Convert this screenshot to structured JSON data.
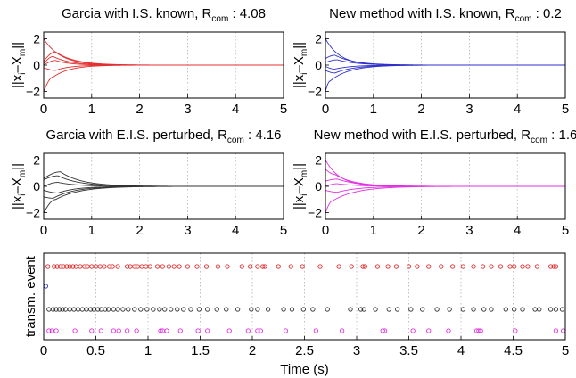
{
  "chart_data": [
    {
      "type": "line",
      "title_main": "Garcia with I.S. known, R",
      "title_sub": "com",
      "title_value": " : 4.08",
      "ylabel_main": "||x",
      "ylabel_sub": "i",
      "ylabel_mid": "–X",
      "ylabel_sub2": "m",
      "ylabel_end": "||",
      "xlim": [
        0,
        5
      ],
      "ylim": [
        -2.5,
        2.5
      ],
      "xticks": [
        "0",
        "1",
        "2",
        "3",
        "4",
        "5"
      ],
      "yticks": [
        "2",
        "0",
        "−2"
      ],
      "grid": "vertical dotted",
      "color": "#e03030",
      "series": [
        {
          "x0": 2.0,
          "peak": 0.0,
          "tp": 0.0,
          "tau": 0.35
        },
        {
          "x0": 0.3,
          "peak": 1.0,
          "tp": 0.25,
          "tau": 0.4
        },
        {
          "x0": 0.1,
          "peak": 0.65,
          "tp": 0.2,
          "tau": 0.35
        },
        {
          "x0": 0.0,
          "peak": 0.35,
          "tp": 0.25,
          "tau": 0.3
        },
        {
          "x0": -0.2,
          "peak": -0.4,
          "tp": 0.25,
          "tau": 0.3
        },
        {
          "x0": -2.0,
          "peak": -0.9,
          "tp": 0.2,
          "tau": 0.35
        }
      ]
    },
    {
      "type": "line",
      "title_main": "New method with I.S. known, R",
      "title_sub": "com",
      "title_value": " : 0.2",
      "ylabel_main": "||x",
      "ylabel_sub": "i",
      "ylabel_mid": "–X",
      "ylabel_sub2": "m",
      "ylabel_end": "||",
      "xlim": [
        0,
        5
      ],
      "ylim": [
        -2.5,
        2.5
      ],
      "xticks": [
        "0",
        "1",
        "2",
        "3",
        "4",
        "5"
      ],
      "yticks": [
        "2",
        "0",
        "−2"
      ],
      "grid": "vertical dotted",
      "color": "#3030c8",
      "series": [
        {
          "x0": 2.0,
          "peak": 0.0,
          "tp": 0.0,
          "tau": 0.3
        },
        {
          "x0": 0.5,
          "peak": 0.75,
          "tp": 0.2,
          "tau": 0.4
        },
        {
          "x0": 0.2,
          "peak": 0.4,
          "tp": 0.25,
          "tau": 0.4
        },
        {
          "x0": -0.1,
          "peak": -0.3,
          "tp": 0.2,
          "tau": 0.35
        },
        {
          "x0": -0.4,
          "peak": -0.6,
          "tp": 0.2,
          "tau": 0.4
        },
        {
          "x0": -2.0,
          "peak": -1.2,
          "tp": 0.1,
          "tau": 0.4
        }
      ]
    },
    {
      "type": "line",
      "title_main": "Garcia with E.I.S. perturbed, R",
      "title_sub": "com",
      "title_value": " : 4.16",
      "ylabel_main": "||x",
      "ylabel_sub": "i",
      "ylabel_mid": "–X",
      "ylabel_sub2": "m",
      "ylabel_end": "||",
      "xlim": [
        0,
        5
      ],
      "ylim": [
        -2.5,
        2.5
      ],
      "xticks": [
        "0",
        "1",
        "2",
        "3",
        "4",
        "5"
      ],
      "yticks": [
        "2",
        "0",
        "−2"
      ],
      "grid": "vertical dotted",
      "color": "#333333",
      "series": [
        {
          "x0": 0.6,
          "peak": 1.1,
          "tp": 0.35,
          "tau": 0.45
        },
        {
          "x0": 0.5,
          "peak": 0.8,
          "tp": 0.3,
          "tau": 0.45
        },
        {
          "x0": 0.0,
          "peak": 0.3,
          "tp": 0.3,
          "tau": 0.4
        },
        {
          "x0": -0.3,
          "peak": -0.5,
          "tp": 0.3,
          "tau": 0.4
        },
        {
          "x0": -0.8,
          "peak": -0.9,
          "tp": 0.2,
          "tau": 0.45
        },
        {
          "x0": -2.0,
          "peak": -1.0,
          "tp": 0.25,
          "tau": 0.5
        }
      ]
    },
    {
      "type": "line",
      "title_main": "New method with E.I.S. perturbed, R",
      "title_sub": "com",
      "title_value": " : 1.6",
      "ylabel_main": "||x",
      "ylabel_sub": "i",
      "ylabel_mid": "–X",
      "ylabel_sub2": "m",
      "ylabel_end": "||",
      "xlim": [
        0,
        5
      ],
      "ylim": [
        -2.5,
        2.5
      ],
      "xticks": [
        "0",
        "1",
        "2",
        "3",
        "4",
        "5"
      ],
      "yticks": [
        "2",
        "0",
        "−2"
      ],
      "grid": "vertical dotted",
      "color": "#e030e0",
      "series": [
        {
          "x0": 2.0,
          "peak": 0.0,
          "tp": 0.0,
          "tau": 0.3
        },
        {
          "x0": 1.3,
          "peak": 0.9,
          "tp": 0.2,
          "tau": 0.4
        },
        {
          "x0": 0.4,
          "peak": 0.55,
          "tp": 0.25,
          "tau": 0.45
        },
        {
          "x0": 0.0,
          "peak": 0.2,
          "tp": 0.25,
          "tau": 0.4
        },
        {
          "x0": -0.3,
          "peak": -0.45,
          "tp": 0.25,
          "tau": 0.45
        },
        {
          "x0": -2.0,
          "peak": -1.1,
          "tp": 0.15,
          "tau": 0.5
        }
      ]
    },
    {
      "type": "scatter",
      "xlabel": "Time (s)",
      "ylabel": "transm. event",
      "xlim": [
        0,
        5
      ],
      "xticks": [
        "0",
        "0.5",
        "1",
        "1.5",
        "2",
        "2.5",
        "3",
        "3.5",
        "4",
        "4.5",
        "5"
      ],
      "grid": "vertical dotted",
      "rows": [
        {
          "color": "#e03030",
          "times": [
            0.04,
            0.1,
            0.13,
            0.16,
            0.19,
            0.22,
            0.25,
            0.28,
            0.31,
            0.35,
            0.39,
            0.42,
            0.46,
            0.5,
            0.54,
            0.58,
            0.63,
            0.66,
            0.71,
            0.8,
            0.83,
            0.87,
            0.9,
            0.94,
            0.98,
            1.02,
            1.09,
            1.14,
            1.2,
            1.25,
            1.3,
            1.38,
            1.47,
            1.56,
            1.67,
            1.76,
            1.9,
            1.98,
            2.05,
            2.1,
            2.12,
            2.25,
            2.37,
            2.48,
            2.65,
            2.83,
            2.95,
            3.06,
            3.08,
            3.2,
            3.3,
            3.38,
            3.5,
            3.58,
            3.69,
            3.81,
            3.92,
            4.02,
            4.12,
            4.21,
            4.29,
            4.38,
            4.47,
            4.51,
            4.59,
            4.64,
            4.73,
            4.86,
            4.89,
            4.91
          ]
        },
        {
          "color": "#3030c8",
          "times": [
            0.02
          ]
        },
        {
          "color": "#333333",
          "times": [
            0.05,
            0.09,
            0.12,
            0.15,
            0.18,
            0.21,
            0.25,
            0.29,
            0.33,
            0.37,
            0.41,
            0.45,
            0.48,
            0.52,
            0.55,
            0.59,
            0.62,
            0.67,
            0.71,
            0.76,
            0.81,
            0.87,
            0.93,
            0.99,
            1.05,
            1.11,
            1.16,
            1.22,
            1.28,
            1.34,
            1.41,
            1.49,
            1.57,
            1.66,
            1.75,
            1.86,
            1.99,
            2.05,
            2.15,
            2.3,
            2.38,
            2.49,
            2.58,
            2.72,
            2.94,
            3.04,
            3.07,
            3.18,
            3.31,
            3.39,
            3.52,
            3.63,
            3.77,
            3.89,
            4.02,
            4.12,
            4.22,
            4.29,
            4.43,
            4.51,
            4.59,
            4.71,
            4.75,
            4.86,
            4.91,
            4.97
          ]
        },
        {
          "color": "#e030e0",
          "times": [
            0.05,
            0.08,
            0.12,
            0.3,
            0.46,
            0.55,
            0.67,
            0.72,
            0.8,
            0.89,
            1.12,
            1.14,
            1.18,
            1.31,
            1.48,
            1.57,
            1.78,
            1.96,
            2.05,
            2.08,
            2.32,
            2.61,
            2.86,
            3.25,
            3.27,
            3.54,
            3.69,
            3.88,
            4.15,
            4.17,
            4.19,
            4.52,
            4.91,
            4.98
          ]
        }
      ]
    }
  ]
}
